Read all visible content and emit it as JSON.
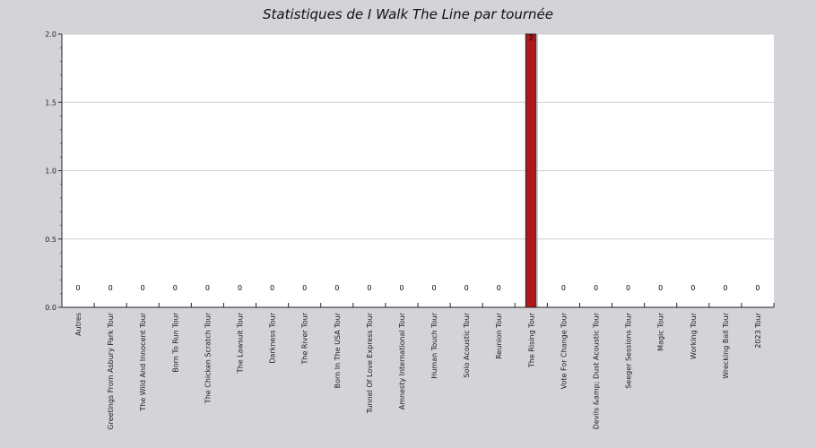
{
  "chart_data": {
    "type": "bar",
    "title": "Statistiques de I Walk The Line par tournée",
    "xlabel": "",
    "ylabel": "",
    "ylim": [
      0,
      2.0
    ],
    "yticks": [
      "0.0",
      "0.5",
      "1.0",
      "1.5",
      "2.0"
    ],
    "grid": true,
    "categories": [
      "Autres",
      "Greetings From Asbury Park Tour",
      "The Wild And Innocent Tour",
      "Born To Run Tour",
      "The Chicken Scratch Tour",
      "The Lawsuit Tour",
      "Darkness Tour",
      "The River Tour",
      "Born In The USA Tour",
      "Tunnel Of Love Express Tour",
      "Amnesty International Tour",
      "Human Touch Tour",
      "Solo Acoustic Tour",
      "Reunion Tour",
      "The Rising Tour",
      "Vote For Change Tour",
      "Devils &amp; Dust Acoustic Tour",
      "Seeger Sessions Tour",
      "Magic Tour",
      "Working Tour",
      "Wrecking Ball Tour",
      "2023 Tour"
    ],
    "values": [
      0,
      0,
      0,
      0,
      0,
      0,
      0,
      0,
      0,
      0,
      0,
      0,
      0,
      0,
      2,
      0,
      0,
      0,
      0,
      0,
      0,
      0
    ],
    "data_labels": [
      "0",
      "0",
      "0",
      "0",
      "0",
      "0",
      "0",
      "0",
      "0",
      "0",
      "0",
      "0",
      "0",
      "0",
      "2",
      "0",
      "0",
      "0",
      "0",
      "0",
      "0",
      "0"
    ],
    "bar_color": "#b0181a"
  }
}
